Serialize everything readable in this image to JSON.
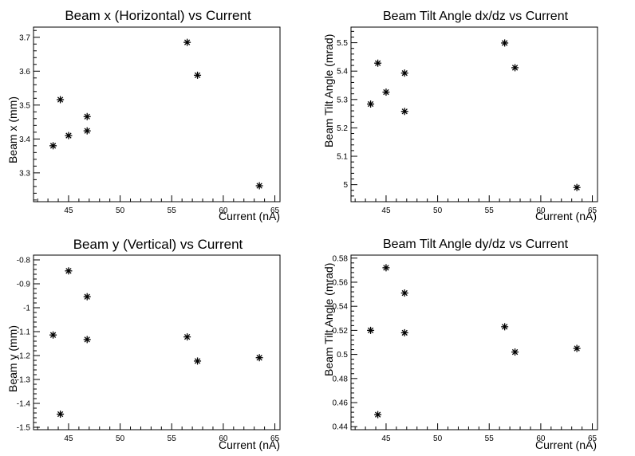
{
  "chart_data": [
    {
      "type": "scatter",
      "title": "Beam x (Horizontal) vs Current",
      "xlabel": "Current (nA)",
      "ylabel": "Beam x (mm)",
      "xlim": [
        41.6,
        65.5
      ],
      "ylim": [
        3.215,
        3.73
      ],
      "xticks": [
        "45",
        "50",
        "55",
        "60",
        "65"
      ],
      "yticks": [
        "3.3",
        "3.4",
        "3.5",
        "3.6",
        "3.7"
      ],
      "x": [
        43.5,
        44.2,
        45.0,
        46.8,
        46.8,
        56.5,
        57.5,
        63.5
      ],
      "y": [
        3.38,
        3.516,
        3.41,
        3.466,
        3.424,
        3.685,
        3.588,
        3.262
      ]
    },
    {
      "type": "scatter",
      "title": "Beam Tilt Angle dx/dz vs Current",
      "xlabel": "Current (nA)",
      "ylabel": "Beam Tilt Angle (mrad)",
      "xlim": [
        41.6,
        65.5
      ],
      "ylim": [
        4.94,
        5.555
      ],
      "xticks": [
        "45",
        "50",
        "55",
        "60",
        "65"
      ],
      "yticks": [
        "5",
        "5.1",
        "5.2",
        "5.3",
        "5.4",
        "5.5"
      ],
      "x": [
        43.5,
        44.2,
        45.0,
        46.8,
        46.8,
        56.5,
        57.5,
        63.5
      ],
      "y": [
        5.284,
        5.428,
        5.326,
        5.393,
        5.258,
        5.499,
        5.412,
        4.99
      ]
    },
    {
      "type": "scatter",
      "title": "Beam y (Vertical) vs Current",
      "xlabel": "Current (nA)",
      "ylabel": "Beam y (mm)",
      "xlim": [
        41.6,
        65.5
      ],
      "ylim": [
        -1.51,
        -0.78
      ],
      "xticks": [
        "45",
        "50",
        "55",
        "60",
        "65"
      ],
      "yticks": [
        "-0.8",
        "-0.9",
        "-1",
        "-1.1",
        "-1.2",
        "-1.3",
        "-1.4",
        "-1.5"
      ],
      "x": [
        43.5,
        44.2,
        45.0,
        46.8,
        46.8,
        56.5,
        57.5,
        63.5
      ],
      "y": [
        -1.114,
        -1.445,
        -0.846,
        -0.954,
        -1.133,
        -1.122,
        -1.223,
        -1.209
      ]
    },
    {
      "type": "scatter",
      "title": "Beam Tilt Angle dy/dz vs Current",
      "xlabel": "Current (nA)",
      "ylabel": "Beam Tilt Angle (mrad)",
      "xlim": [
        41.6,
        65.5
      ],
      "ylim": [
        0.4375,
        0.5825
      ],
      "xticks": [
        "45",
        "50",
        "55",
        "60",
        "65"
      ],
      "yticks": [
        "0.44",
        "0.46",
        "0.48",
        "0.5",
        "0.52",
        "0.54",
        "0.56",
        "0.58"
      ],
      "x": [
        43.5,
        44.2,
        45.0,
        46.8,
        46.8,
        56.5,
        57.5,
        63.5
      ],
      "y": [
        0.52,
        0.45,
        0.572,
        0.551,
        0.518,
        0.523,
        0.502,
        0.505
      ]
    }
  ]
}
